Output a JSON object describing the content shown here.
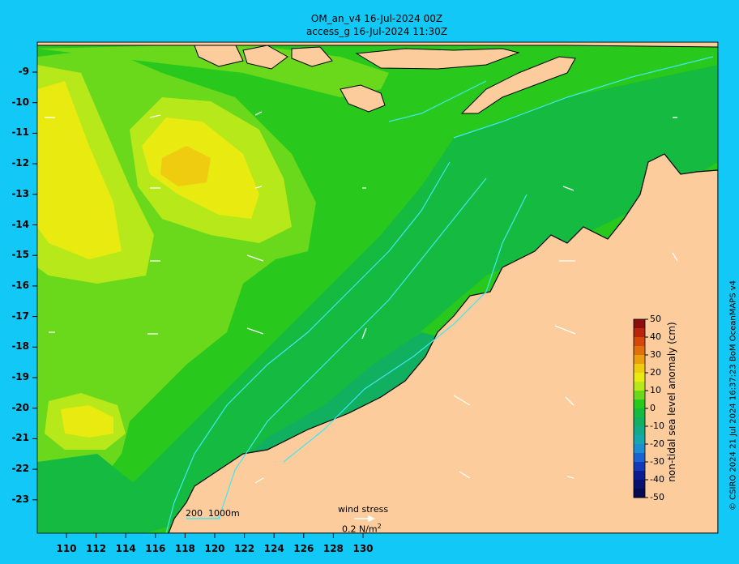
{
  "title_line1": "OM_an_v4  16-Jul-2024 00Z",
  "title_line2": "access_g 16-Jul-2024 11:30Z",
  "lat_labels": [
    "-9",
    "-10",
    "-11",
    "-12",
    "-13",
    "-14",
    "-15",
    "-16",
    "-17",
    "-18",
    "-19",
    "-20",
    "-21",
    "-22",
    "-23"
  ],
  "lon_labels": [
    "110",
    "112",
    "114",
    "116",
    "118",
    "120",
    "122",
    "124",
    "126",
    "128",
    "130"
  ],
  "colorbar": {
    "label": "non-tidal sea level anomaly (cm)",
    "ticks": [
      "50",
      "40",
      "30",
      "20",
      "10",
      "0",
      "-10",
      "-20",
      "-30",
      "-40",
      "-50"
    ],
    "colors": [
      "#8b0d0d",
      "#b8250a",
      "#d4480a",
      "#e0700c",
      "#eaa00e",
      "#f0cc10",
      "#e8ea10",
      "#b6e81a",
      "#6ad91c",
      "#28c81c",
      "#14bb40",
      "#10b060",
      "#12aa88",
      "#16a6b0",
      "#1a8ed0",
      "#1a62d0",
      "#1438b8",
      "#0c1c90",
      "#081070",
      "#060a50"
    ]
  },
  "depth_legend": {
    "text1": "200",
    "text2": "1000m"
  },
  "wind_legend": {
    "label": "wind stress",
    "value": "0.2 N/m",
    "sup": "2"
  },
  "credit": "© CSIRO 2024   21 Jul 2024 16:37:23 BoM OceanMAPS v4",
  "colors": {
    "land": "#fccc9c",
    "frame": "#12c8f6",
    "contour": "#40e8f0"
  }
}
